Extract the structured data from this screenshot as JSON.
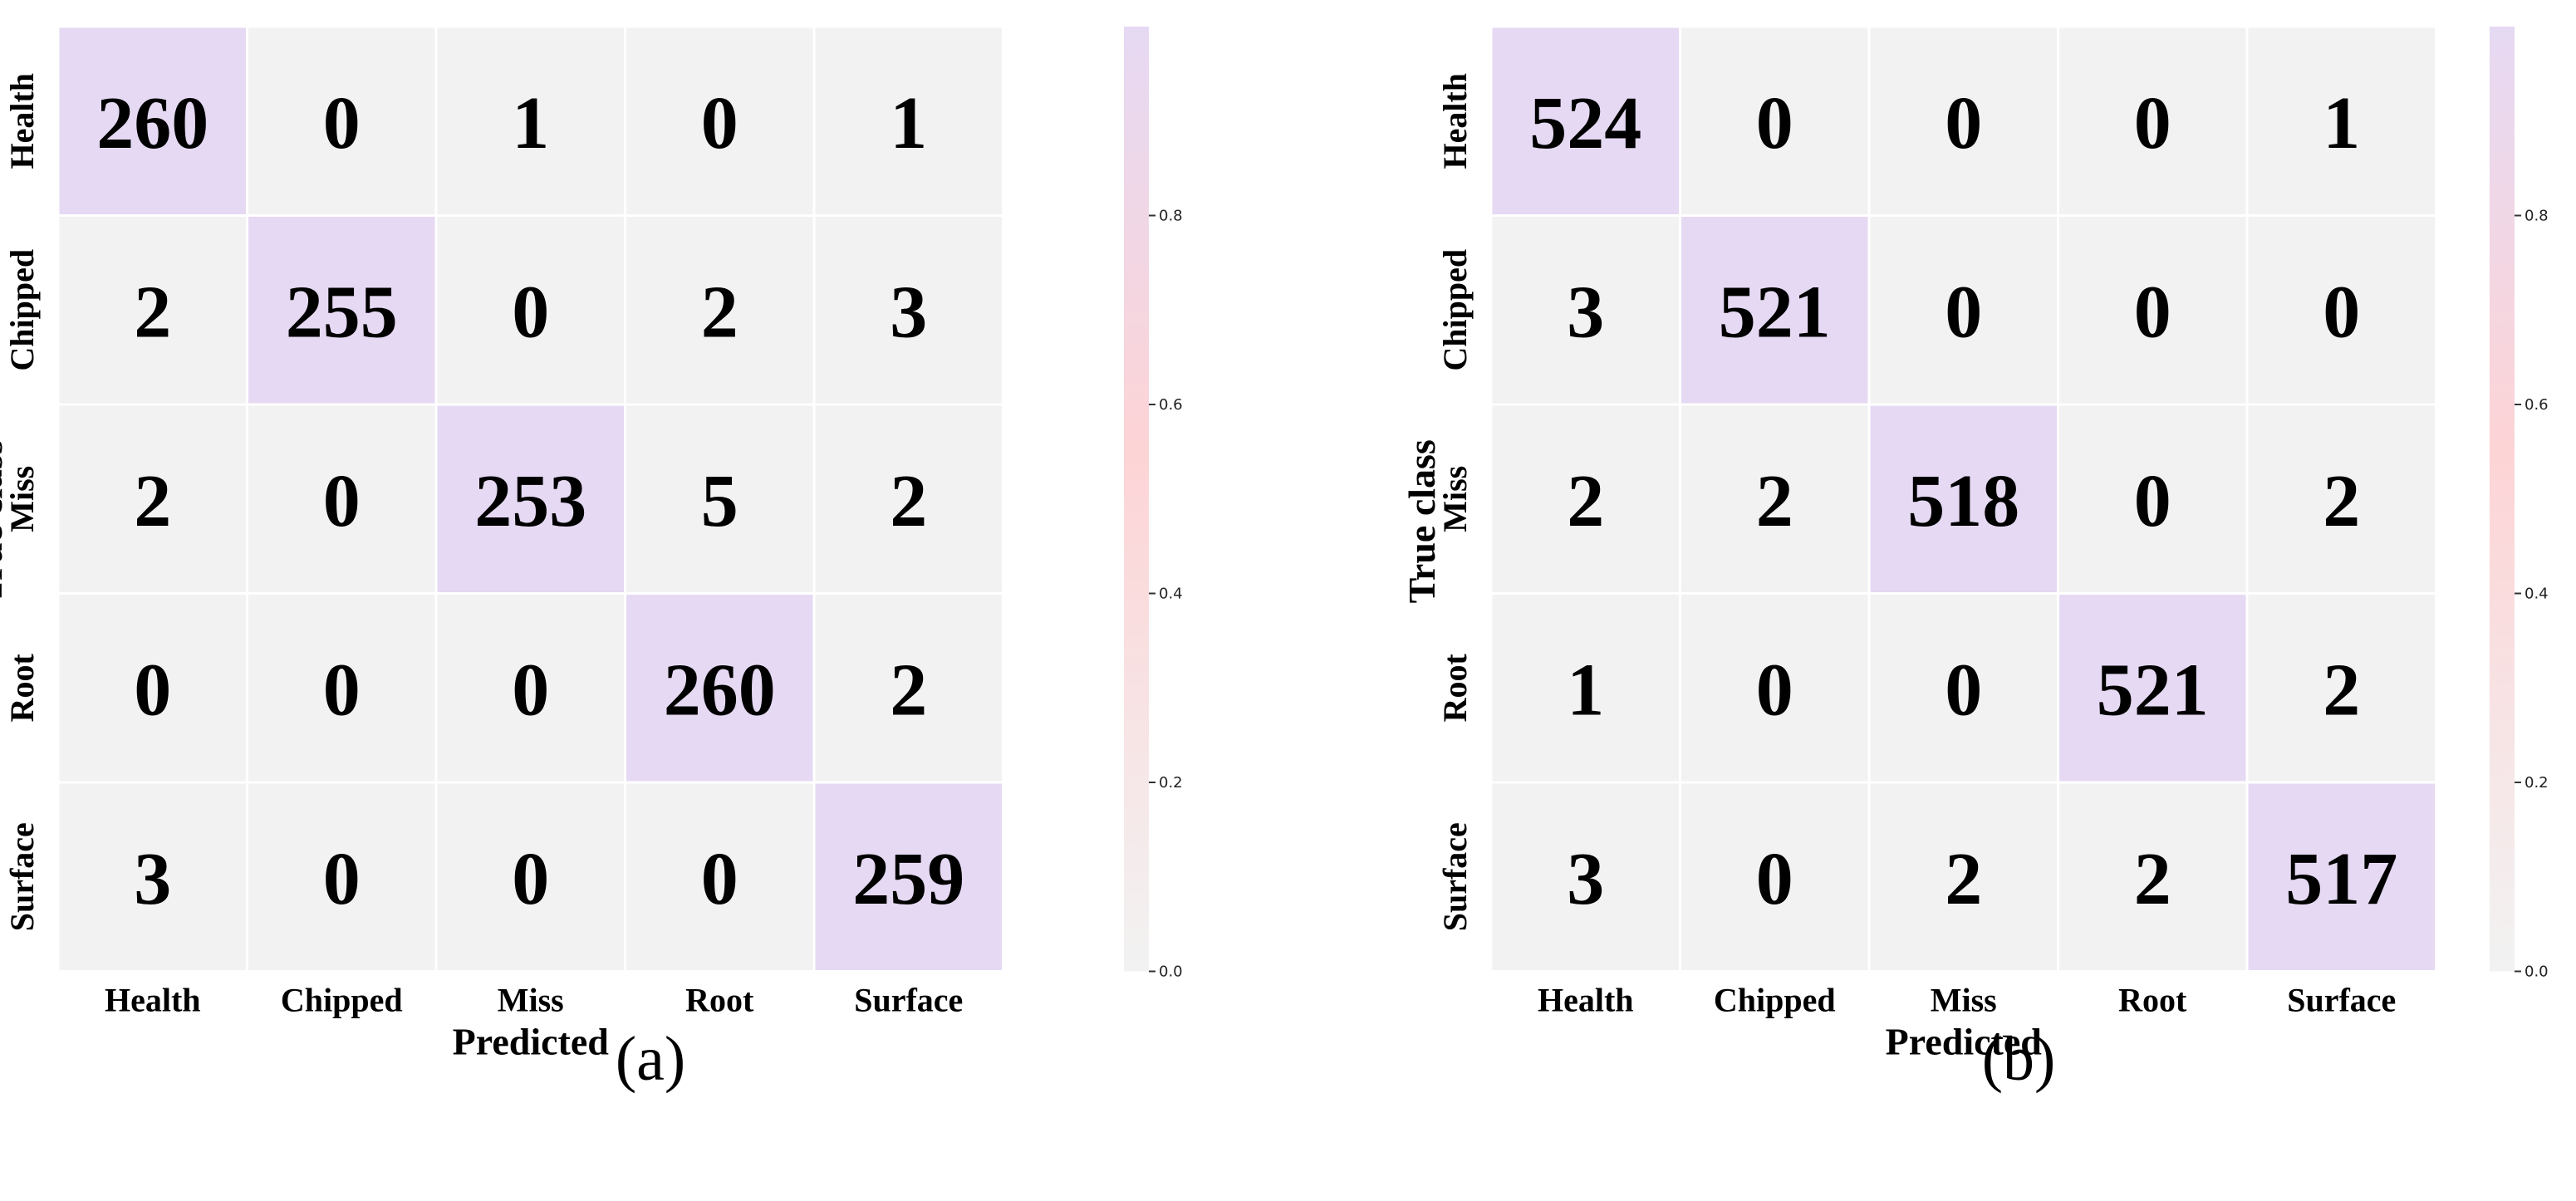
{
  "colors": {
    "low": "#f2f2f2",
    "mid": "#fdd4d6",
    "high": "#e6d9f3",
    "cell_border": "#ffffff",
    "text": "#000000"
  },
  "chart_data": [
    {
      "type": "heatmap",
      "panel_label": "(a)",
      "xlabel": "Predicted",
      "ylabel": "True class",
      "x_categories": [
        "Health",
        "Chipped",
        "Miss",
        "Root",
        "Surface"
      ],
      "y_categories": [
        "Health",
        "Chipped",
        "Miss",
        "Root",
        "Surface"
      ],
      "values": [
        [
          260,
          0,
          1,
          0,
          1
        ],
        [
          2,
          255,
          0,
          2,
          3
        ],
        [
          2,
          0,
          253,
          5,
          2
        ],
        [
          0,
          0,
          0,
          260,
          2
        ],
        [
          3,
          0,
          0,
          0,
          259
        ]
      ],
      "colorbar": {
        "range": [
          0,
          1
        ],
        "ticks": [
          "0.0",
          "0.2",
          "0.4",
          "0.6",
          "0.8"
        ]
      }
    },
    {
      "type": "heatmap",
      "panel_label": "(b)",
      "xlabel": "Predicted",
      "ylabel": "True class",
      "x_categories": [
        "Health",
        "Chipped",
        "Miss",
        "Root",
        "Surface"
      ],
      "y_categories": [
        "Health",
        "Chipped",
        "Miss",
        "Root",
        "Surface"
      ],
      "values": [
        [
          524,
          0,
          0,
          0,
          1
        ],
        [
          3,
          521,
          0,
          0,
          0
        ],
        [
          2,
          2,
          518,
          0,
          2
        ],
        [
          1,
          0,
          0,
          521,
          2
        ],
        [
          3,
          0,
          2,
          2,
          517
        ]
      ],
      "colorbar": {
        "range": [
          0,
          1
        ],
        "ticks": [
          "0.0",
          "0.2",
          "0.4",
          "0.6",
          "0.8"
        ]
      }
    }
  ]
}
